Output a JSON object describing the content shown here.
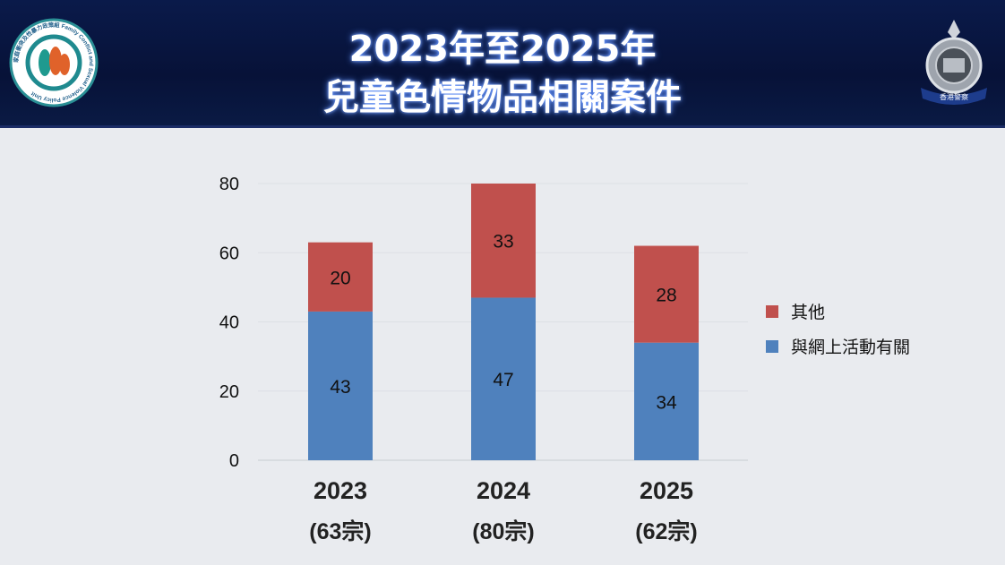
{
  "header": {
    "title_line1": "2023年至2025年",
    "title_line2": "兒童色情物品相關案件",
    "left_logo_text": "家庭衝突及性暴力政策組 Family Conflict and Sexual Violence Policy Unit",
    "right_logo_text": "香港警察"
  },
  "colors": {
    "header_bg": "#071238",
    "series_other": "#c0504d",
    "series_online": "#4f81bd"
  },
  "chart_data": {
    "type": "bar",
    "stacked": true,
    "title": "2023年至2025年 兒童色情物品相關案件",
    "categories": [
      "2023",
      "2024",
      "2025"
    ],
    "category_totals": [
      "(63宗)",
      "(80宗)",
      "(62宗)"
    ],
    "series": [
      {
        "name": "與網上活動有關",
        "color": "#4f81bd",
        "values": [
          43,
          47,
          34
        ]
      },
      {
        "name": "其他",
        "color": "#c0504d",
        "values": [
          20,
          33,
          28
        ]
      }
    ],
    "legend_order": [
      "其他",
      "與網上活動有關"
    ],
    "legend_position": "right",
    "ylim": [
      0,
      80
    ],
    "yticks": [
      "0",
      "20",
      "40",
      "60",
      "80"
    ],
    "grid": true,
    "xlabel": "",
    "ylabel": ""
  }
}
